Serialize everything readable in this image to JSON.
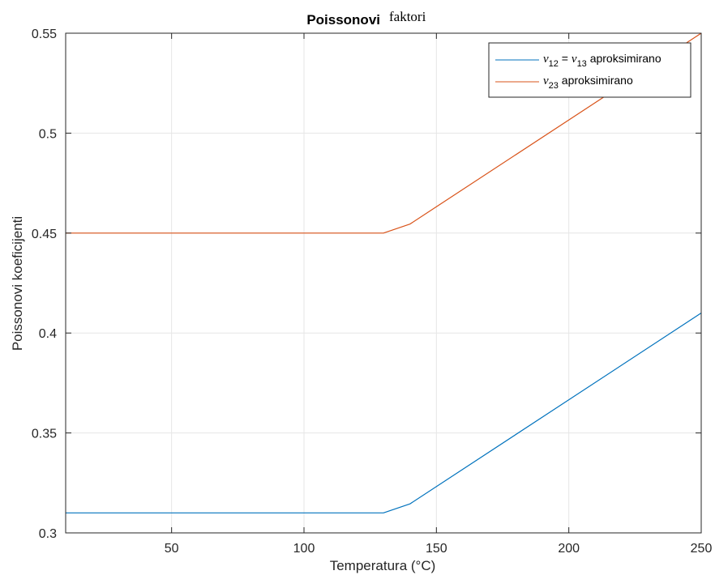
{
  "chart_data": {
    "type": "line",
    "title": "Poissonovi",
    "title_suffix": "faktori",
    "xlabel": "Temperatura (°C)",
    "ylabel": "Poissonovi koeficijenti",
    "xlim": [
      10,
      250
    ],
    "ylim": [
      0.3,
      0.55
    ],
    "xticks": [
      50,
      100,
      150,
      200,
      250
    ],
    "yticks": [
      0.3,
      0.35,
      0.4,
      0.45,
      0.5,
      0.55
    ],
    "xtick_labels": [
      "50",
      "100",
      "150",
      "200",
      "250"
    ],
    "ytick_labels": [
      "0.3",
      "0.35",
      "0.4",
      "0.45",
      "0.5",
      "0.55"
    ],
    "grid": true,
    "legend_position": "top-right",
    "series": [
      {
        "name": "ν12 = ν13 aproksimirano",
        "legend_parts": {
          "sym": "ν",
          "sub1": "12",
          "eq": " = ",
          "sub2": "13",
          "suffix": " aproksimirano"
        },
        "color": "#0072BD",
        "x": [
          10,
          130,
          140,
          250
        ],
        "y": [
          0.31,
          0.31,
          0.3145,
          0.41
        ]
      },
      {
        "name": "ν23 aproksimirano",
        "legend_parts": {
          "sym": "ν",
          "sub1": "23",
          "suffix": " aproksimirano"
        },
        "color": "#D95319",
        "x": [
          10,
          130,
          140,
          250
        ],
        "y": [
          0.45,
          0.45,
          0.4545,
          0.55
        ]
      }
    ]
  }
}
